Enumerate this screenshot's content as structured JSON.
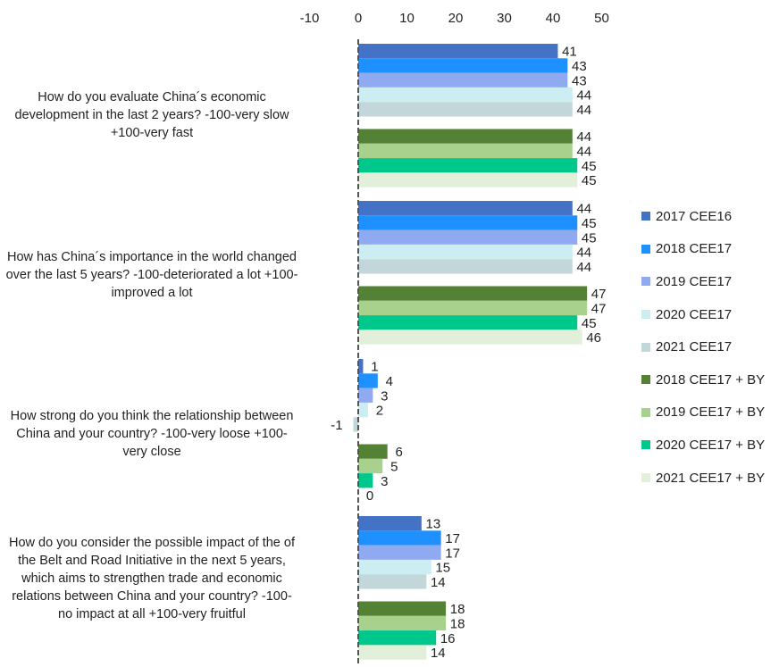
{
  "chart_data": {
    "type": "bar",
    "orientation": "horizontal",
    "x_axis": {
      "ticks": [
        "-10",
        "0",
        "10",
        "20",
        "30",
        "40",
        "50"
      ],
      "min": -10,
      "max": 50,
      "position": "top"
    },
    "categories": [
      "How do you evaluate China´s economic development in the last 2 years? -100-very slow +100-very fast",
      "How has China´s importance in the world changed over the last 5 years? -100-deteriorated a lot +100-improved a lot",
      "How strong do you think the relationship between China and your country? -100-very loose +100-very close",
      "How do you consider the possible impact of the of the Belt and Road Initiative in the next 5 years, which aims to strengthen trade and economic relations between China and your country? -100-no impact at all +100-very fruitful"
    ],
    "series": [
      {
        "name": "2017 CEE16",
        "color": "#4472C4",
        "values": [
          41,
          44,
          1,
          13
        ]
      },
      {
        "name": "2018 CEE17",
        "color": "#1E90FF",
        "values": [
          43,
          45,
          4,
          17
        ]
      },
      {
        "name": "2019 CEE17",
        "color": "#8FAAF0",
        "values": [
          43,
          45,
          3,
          17
        ]
      },
      {
        "name": "2020 CEE17",
        "color": "#CCEEF2",
        "values": [
          44,
          44,
          2,
          15
        ]
      },
      {
        "name": "2021 CEE17",
        "color": "#C2D7DA",
        "values": [
          44,
          44,
          -1,
          14
        ]
      },
      {
        "name": "2018 CEE17 + BY",
        "color": "#548235",
        "values": [
          44,
          47,
          6,
          18
        ]
      },
      {
        "name": "2019 CEE17 + BY",
        "color": "#A9D18E",
        "values": [
          44,
          47,
          5,
          18
        ]
      },
      {
        "name": "2020 CEE17 + BY",
        "color": "#00C88C",
        "values": [
          45,
          45,
          3,
          16
        ]
      },
      {
        "name": "2021 CEE17 + BY",
        "color": "#E2F0D9",
        "values": [
          45,
          46,
          0,
          14
        ]
      }
    ],
    "legend_position": "right",
    "grid": false,
    "data_labels": true
  },
  "labels": {
    "q1": "How do you evaluate China´s economic development in the last 2 years? -100-very slow +100-very fast",
    "q2": "How has China´s importance in the world changed over the last 5 years? -100-deteriorated a lot +100-improved a lot",
    "q3": "How strong do you think the relationship between China and your country? -100-very loose +100-very close",
    "q4": "How do you consider the possible impact of the of the Belt and Road Initiative in the next 5 years, which aims to strengthen trade and economic relations between China and your country? -100-no impact at all +100-very fruitful"
  }
}
